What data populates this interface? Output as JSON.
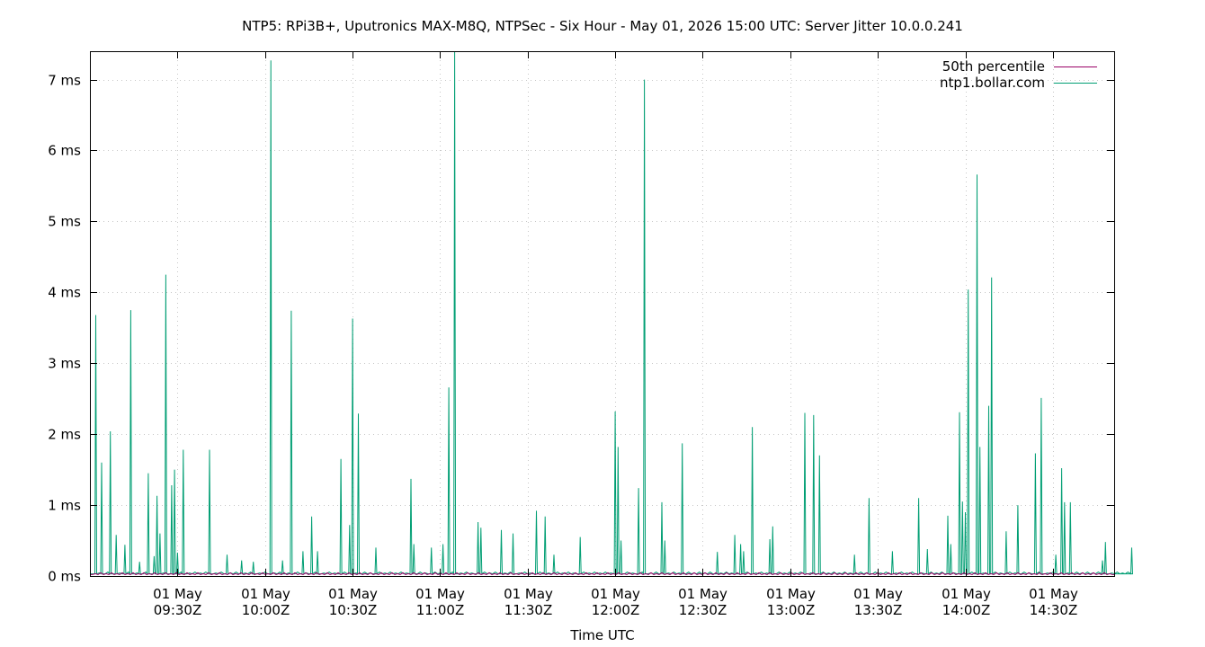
{
  "chart_data": {
    "type": "line",
    "title": "NTP5: RPi3B+, Uputronics MAX-M8Q, NTPSec - Six Hour - May 01, 2026 15:00 UTC: Server Jitter 10.0.0.241",
    "xlabel": "Time UTC",
    "ylabel": "",
    "x_range": [
      "2026-05-01T09:00Z",
      "2026-05-01T14:51Z"
    ],
    "ylim": [
      0,
      7.4
    ],
    "y_unit": "ms",
    "y_ticks": [
      {
        "value": 0,
        "label": "0 ms"
      },
      {
        "value": 1,
        "label": "1 ms"
      },
      {
        "value": 2,
        "label": "2 ms"
      },
      {
        "value": 3,
        "label": "3 ms"
      },
      {
        "value": 4,
        "label": "4 ms"
      },
      {
        "value": 5,
        "label": "5 ms"
      },
      {
        "value": 6,
        "label": "6 ms"
      },
      {
        "value": 7,
        "label": "7 ms"
      }
    ],
    "x_ticks": [
      {
        "value": "2026-05-01T09:30Z",
        "date": "01 May",
        "time": "09:30Z"
      },
      {
        "value": "2026-05-01T10:00Z",
        "date": "01 May",
        "time": "10:00Z"
      },
      {
        "value": "2026-05-01T10:30Z",
        "date": "01 May",
        "time": "10:30Z"
      },
      {
        "value": "2026-05-01T11:00Z",
        "date": "01 May",
        "time": "11:00Z"
      },
      {
        "value": "2026-05-01T11:30Z",
        "date": "01 May",
        "time": "11:30Z"
      },
      {
        "value": "2026-05-01T12:00Z",
        "date": "01 May",
        "time": "12:00Z"
      },
      {
        "value": "2026-05-01T12:30Z",
        "date": "01 May",
        "time": "12:30Z"
      },
      {
        "value": "2026-05-01T13:00Z",
        "date": "01 May",
        "time": "13:00Z"
      },
      {
        "value": "2026-05-01T13:30Z",
        "date": "01 May",
        "time": "13:30Z"
      },
      {
        "value": "2026-05-01T14:00Z",
        "date": "01 May",
        "time": "14:00Z"
      },
      {
        "value": "2026-05-01T14:30Z",
        "date": "01 May",
        "time": "14:30Z"
      }
    ],
    "grid": true,
    "legend_position": "top-right",
    "series": [
      {
        "name": "50th percentile",
        "color": "#990066",
        "baseline": 0.02,
        "spikes": []
      },
      {
        "name": "ntp1.bollar.com",
        "color": "#009e73",
        "baseline": 0.03,
        "spikes": [
          [
            "2026-05-01T09:02Z",
            3.68
          ],
          [
            "2026-05-01T09:04Z",
            1.6
          ],
          [
            "2026-05-01T09:07Z",
            2.04
          ],
          [
            "2026-05-01T09:09Z",
            0.58
          ],
          [
            "2026-05-01T09:12Z",
            0.44
          ],
          [
            "2026-05-01T09:14Z",
            3.75
          ],
          [
            "2026-05-01T09:17Z",
            0.2
          ],
          [
            "2026-05-01T09:20Z",
            1.45
          ],
          [
            "2026-05-01T09:22Z",
            0.28
          ],
          [
            "2026-05-01T09:23Z",
            1.13
          ],
          [
            "2026-05-01T09:24Z",
            0.6
          ],
          [
            "2026-05-01T09:26Z",
            4.25
          ],
          [
            "2026-05-01T09:28Z",
            1.28
          ],
          [
            "2026-05-01T09:29Z",
            1.5
          ],
          [
            "2026-05-01T09:30Z",
            0.33
          ],
          [
            "2026-05-01T09:32Z",
            1.78
          ],
          [
            "2026-05-01T09:41Z",
            1.78
          ],
          [
            "2026-05-01T09:47Z",
            0.3
          ],
          [
            "2026-05-01T09:52Z",
            0.22
          ],
          [
            "2026-05-01T09:56Z",
            0.2
          ],
          [
            "2026-05-01T10:02Z",
            7.27
          ],
          [
            "2026-05-01T10:02Z",
            6.27
          ],
          [
            "2026-05-01T10:06Z",
            0.22
          ],
          [
            "2026-05-01T10:09Z",
            3.74
          ],
          [
            "2026-05-01T10:13Z",
            0.35
          ],
          [
            "2026-05-01T10:16Z",
            0.84
          ],
          [
            "2026-05-01T10:18Z",
            0.35
          ],
          [
            "2026-05-01T10:26Z",
            1.65
          ],
          [
            "2026-05-01T10:29Z",
            0.72
          ],
          [
            "2026-05-01T10:30Z",
            3.63
          ],
          [
            "2026-05-01T10:32Z",
            2.29
          ],
          [
            "2026-05-01T10:38Z",
            0.4
          ],
          [
            "2026-05-01T10:50Z",
            1.37
          ],
          [
            "2026-05-01T10:51Z",
            0.45
          ],
          [
            "2026-05-01T10:57Z",
            0.4
          ],
          [
            "2026-05-01T11:01Z",
            0.45
          ],
          [
            "2026-05-01T11:03Z",
            2.66
          ],
          [
            "2026-05-01T11:05Z",
            7.4
          ],
          [
            "2026-05-01T11:13Z",
            0.76
          ],
          [
            "2026-05-01T11:14Z",
            0.68
          ],
          [
            "2026-05-01T11:21Z",
            0.65
          ],
          [
            "2026-05-01T11:25Z",
            0.6
          ],
          [
            "2026-05-01T11:33Z",
            0.92
          ],
          [
            "2026-05-01T11:36Z",
            0.84
          ],
          [
            "2026-05-01T11:39Z",
            0.3
          ],
          [
            "2026-05-01T11:48Z",
            0.55
          ],
          [
            "2026-05-01T12:00Z",
            2.32
          ],
          [
            "2026-05-01T12:01Z",
            1.82
          ],
          [
            "2026-05-01T12:02Z",
            0.5
          ],
          [
            "2026-05-01T12:08Z",
            1.24
          ],
          [
            "2026-05-01T12:10Z",
            7.0
          ],
          [
            "2026-05-01T12:16Z",
            1.04
          ],
          [
            "2026-05-01T12:17Z",
            0.5
          ],
          [
            "2026-05-01T12:23Z",
            1.87
          ],
          [
            "2026-05-01T12:35Z",
            0.34
          ],
          [
            "2026-05-01T12:41Z",
            0.58
          ],
          [
            "2026-05-01T12:43Z",
            0.45
          ],
          [
            "2026-05-01T12:44Z",
            0.35
          ],
          [
            "2026-05-01T12:47Z",
            2.1
          ],
          [
            "2026-05-01T12:53Z",
            0.52
          ],
          [
            "2026-05-01T12:54Z",
            0.7
          ],
          [
            "2026-05-01T13:05Z",
            2.3
          ],
          [
            "2026-05-01T13:08Z",
            2.27
          ],
          [
            "2026-05-01T13:10Z",
            1.7
          ],
          [
            "2026-05-01T13:22Z",
            0.3
          ],
          [
            "2026-05-01T13:27Z",
            1.1
          ],
          [
            "2026-05-01T13:35Z",
            0.35
          ],
          [
            "2026-05-01T13:44Z",
            1.1
          ],
          [
            "2026-05-01T13:47Z",
            0.38
          ],
          [
            "2026-05-01T13:54Z",
            0.85
          ],
          [
            "2026-05-01T13:55Z",
            0.45
          ],
          [
            "2026-05-01T13:58Z",
            2.31
          ],
          [
            "2026-05-01T13:59Z",
            1.05
          ],
          [
            "2026-05-01T14:00Z",
            0.9
          ],
          [
            "2026-05-01T14:01Z",
            4.04
          ],
          [
            "2026-05-01T14:04Z",
            5.66
          ],
          [
            "2026-05-01T14:05Z",
            1.82
          ],
          [
            "2026-05-01T14:08Z",
            2.4
          ],
          [
            "2026-05-01T14:09Z",
            4.21
          ],
          [
            "2026-05-01T14:14Z",
            0.63
          ],
          [
            "2026-05-01T14:18Z",
            1.0
          ],
          [
            "2026-05-01T14:24Z",
            1.73
          ],
          [
            "2026-05-01T14:26Z",
            2.51
          ],
          [
            "2026-05-01T14:31Z",
            0.3
          ],
          [
            "2026-05-01T14:33Z",
            1.52
          ],
          [
            "2026-05-01T14:34Z",
            1.04
          ],
          [
            "2026-05-01T14:36Z",
            1.04
          ],
          [
            "2026-05-01T14:47Z",
            0.22
          ],
          [
            "2026-05-01T14:48Z",
            0.48
          ],
          [
            "2026-05-01T14:57Z",
            0.4
          ]
        ]
      }
    ]
  }
}
